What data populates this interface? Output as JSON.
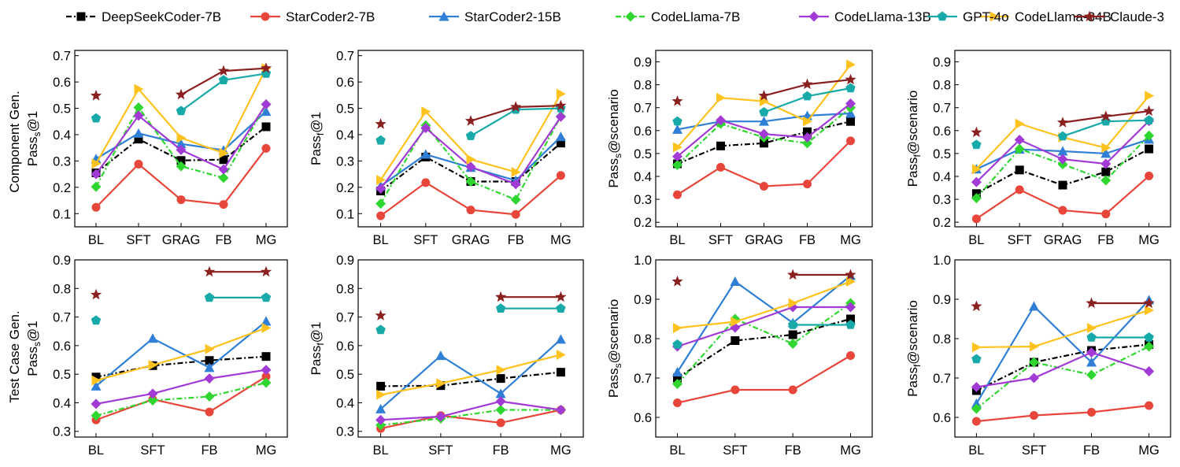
{
  "legend": [
    {
      "name": "DeepSeekCoder-7B",
      "color": "#000000",
      "marker": "square",
      "dash": "dashdot"
    },
    {
      "name": "StarCoder2-7B",
      "color": "#e8463a",
      "marker": "circle",
      "dash": "solid"
    },
    {
      "name": "StarCoder2-15B",
      "color": "#2f7fd6",
      "marker": "triangle",
      "dash": "solid"
    },
    {
      "name": "CodeLlama-7B",
      "color": "#2fd62f",
      "marker": "diamond",
      "dash": "dashdot"
    },
    {
      "name": "CodeLlama-13B",
      "color": "#a23ad6",
      "marker": "diamond",
      "dash": "solid"
    },
    {
      "name": "CodeLlama-34B",
      "color": "#ffc21f",
      "marker": "triangle-right",
      "dash": "solid"
    },
    {
      "name": "GPT-4o",
      "color": "#18a9a9",
      "marker": "pentagon",
      "dash": "solid"
    },
    {
      "name": "Claude-3",
      "color": "#8a2020",
      "marker": "star",
      "dash": "solid"
    }
  ],
  "row_labels": [
    "Component Gen.",
    "Test Case Gen."
  ],
  "chart_data": [
    {
      "type": "line",
      "row": 0,
      "col": 0,
      "ylabel_main": "Pass",
      "ylabel_sub": "s",
      "ylabel_suffix": "@1",
      "categories": [
        "BL",
        "SFT",
        "GRAG",
        "FB",
        "MG"
      ],
      "ylim": [
        0.05,
        0.72
      ],
      "yticks": [
        "0.1",
        "0.2",
        "0.3",
        "0.4",
        "0.5",
        "0.6",
        "0.7"
      ],
      "series": [
        {
          "name": "DeepSeekCoder-7B",
          "values": [
            0.255,
            0.383,
            0.302,
            0.305,
            0.43
          ]
        },
        {
          "name": "StarCoder2-7B",
          "values": [
            0.124,
            0.288,
            0.153,
            0.135,
            0.348
          ]
        },
        {
          "name": "StarCoder2-15B",
          "values": [
            0.308,
            0.405,
            0.365,
            0.341,
            0.488
          ]
        },
        {
          "name": "CodeLlama-7B",
          "values": [
            0.202,
            0.503,
            0.28,
            0.236,
            0.515
          ]
        },
        {
          "name": "CodeLlama-13B",
          "values": [
            0.25,
            0.472,
            0.342,
            0.268,
            0.515
          ]
        },
        {
          "name": "CodeLlama-34B",
          "values": [
            0.29,
            0.573,
            0.388,
            0.33,
            0.652
          ]
        },
        {
          "name": "GPT-4o",
          "values": [
            0.462,
            null,
            0.49,
            0.607,
            0.632
          ]
        },
        {
          "name": "Claude-3",
          "values": [
            0.548,
            null,
            0.552,
            0.642,
            0.652
          ]
        }
      ]
    },
    {
      "type": "line",
      "row": 0,
      "col": 1,
      "ylabel_main": "Pass",
      "ylabel_sub": "f",
      "ylabel_suffix": "@1",
      "categories": [
        "BL",
        "SFT",
        "GRAG",
        "FB",
        "MG"
      ],
      "ylim": [
        0.05,
        0.72
      ],
      "yticks": [
        "0.1",
        "0.2",
        "0.3",
        "0.4",
        "0.5",
        "0.6",
        "0.7"
      ],
      "series": [
        {
          "name": "DeepSeekCoder-7B",
          "values": [
            0.186,
            0.315,
            0.222,
            0.222,
            0.368
          ]
        },
        {
          "name": "StarCoder2-7B",
          "values": [
            0.092,
            0.218,
            0.114,
            0.097,
            0.245
          ]
        },
        {
          "name": "StarCoder2-15B",
          "values": [
            0.205,
            0.325,
            0.275,
            0.226,
            0.392
          ]
        },
        {
          "name": "CodeLlama-7B",
          "values": [
            0.138,
            0.435,
            0.222,
            0.153,
            0.47
          ]
        },
        {
          "name": "CodeLlama-13B",
          "values": [
            0.195,
            0.425,
            0.278,
            0.212,
            0.468
          ]
        },
        {
          "name": "CodeLlama-34B",
          "values": [
            0.228,
            0.488,
            0.306,
            0.258,
            0.555
          ]
        },
        {
          "name": "GPT-4o",
          "values": [
            0.378,
            null,
            0.395,
            0.495,
            0.5
          ]
        },
        {
          "name": "Claude-3",
          "values": [
            0.44,
            null,
            0.452,
            0.505,
            0.51
          ]
        }
      ]
    },
    {
      "type": "line",
      "row": 0,
      "col": 2,
      "ylabel_main": "Pass",
      "ylabel_sub": "s",
      "ylabel_suffix": "@scenario",
      "categories": [
        "BL",
        "SFT",
        "GRAG",
        "FB",
        "MG"
      ],
      "ylim": [
        0.18,
        0.95
      ],
      "yticks": [
        "0.2",
        "0.3",
        "0.4",
        "0.5",
        "0.6",
        "0.7",
        "0.8",
        "0.9"
      ],
      "series": [
        {
          "name": "DeepSeekCoder-7B",
          "values": [
            0.455,
            0.533,
            0.545,
            0.595,
            0.64
          ]
        },
        {
          "name": "StarCoder2-7B",
          "values": [
            0.32,
            0.44,
            0.357,
            0.367,
            0.555
          ]
        },
        {
          "name": "StarCoder2-15B",
          "values": [
            0.605,
            0.64,
            0.64,
            0.665,
            0.675
          ]
        },
        {
          "name": "CodeLlama-7B",
          "values": [
            0.45,
            0.63,
            0.57,
            0.545,
            0.7
          ]
        },
        {
          "name": "CodeLlama-13B",
          "values": [
            0.487,
            0.645,
            0.585,
            0.57,
            0.718
          ]
        },
        {
          "name": "CodeLlama-34B",
          "values": [
            0.527,
            0.743,
            0.728,
            0.64,
            0.888
          ]
        },
        {
          "name": "GPT-4o",
          "values": [
            0.64,
            null,
            0.68,
            0.75,
            0.785
          ]
        },
        {
          "name": "Claude-3",
          "values": [
            0.728,
            null,
            0.752,
            0.802,
            0.822
          ]
        }
      ]
    },
    {
      "type": "line",
      "row": 0,
      "col": 3,
      "ylabel_main": "Pass",
      "ylabel_sub": "f",
      "ylabel_suffix": "@scenario",
      "categories": [
        "BL",
        "SFT",
        "GRAG",
        "FB",
        "MG"
      ],
      "ylim": [
        0.18,
        0.95
      ],
      "yticks": [
        "0.2",
        "0.3",
        "0.4",
        "0.5",
        "0.6",
        "0.7",
        "0.8",
        "0.9"
      ],
      "series": [
        {
          "name": "DeepSeekCoder-7B",
          "values": [
            0.325,
            0.428,
            0.362,
            0.42,
            0.52
          ]
        },
        {
          "name": "StarCoder2-7B",
          "values": [
            0.215,
            0.342,
            0.252,
            0.236,
            0.402
          ]
        },
        {
          "name": "StarCoder2-15B",
          "values": [
            0.432,
            0.518,
            0.51,
            0.5,
            0.562
          ]
        },
        {
          "name": "CodeLlama-7B",
          "values": [
            0.305,
            0.52,
            0.453,
            0.383,
            0.578
          ]
        },
        {
          "name": "CodeLlama-13B",
          "values": [
            0.375,
            0.56,
            0.475,
            0.455,
            0.642
          ]
        },
        {
          "name": "CodeLlama-34B",
          "values": [
            0.432,
            0.63,
            0.57,
            0.525,
            0.752
          ]
        },
        {
          "name": "GPT-4o",
          "values": [
            0.538,
            null,
            0.575,
            0.64,
            0.645
          ]
        },
        {
          "name": "Claude-3",
          "values": [
            0.592,
            null,
            0.635,
            0.662,
            0.685
          ]
        }
      ]
    },
    {
      "type": "line",
      "row": 1,
      "col": 0,
      "ylabel_main": "Pass",
      "ylabel_sub": "s",
      "ylabel_suffix": "@1",
      "categories": [
        "BL",
        "SFT",
        "FB",
        "MG"
      ],
      "ylim": [
        0.28,
        0.9
      ],
      "yticks": [
        "0.3",
        "0.4",
        "0.5",
        "0.6",
        "0.7",
        "0.8",
        "0.9"
      ],
      "series": [
        {
          "name": "DeepSeekCoder-7B",
          "values": [
            0.49,
            0.53,
            0.548,
            0.562
          ]
        },
        {
          "name": "StarCoder2-7B",
          "values": [
            0.34,
            0.412,
            0.368,
            0.492
          ]
        },
        {
          "name": "StarCoder2-15B",
          "values": [
            0.458,
            0.625,
            0.523,
            0.685
          ]
        },
        {
          "name": "CodeLlama-7B",
          "values": [
            0.355,
            0.408,
            0.422,
            0.47
          ]
        },
        {
          "name": "CodeLlama-13B",
          "values": [
            0.396,
            0.432,
            0.485,
            0.515
          ]
        },
        {
          "name": "CodeLlama-34B",
          "values": [
            0.478,
            0.532,
            0.588,
            0.662
          ]
        },
        {
          "name": "GPT-4o",
          "values": [
            0.688,
            null,
            0.768,
            0.768
          ]
        },
        {
          "name": "Claude-3",
          "values": [
            0.778,
            null,
            0.858,
            0.858
          ]
        }
      ]
    },
    {
      "type": "line",
      "row": 1,
      "col": 1,
      "ylabel_main": "Pass",
      "ylabel_sub": "f",
      "ylabel_suffix": "@1",
      "categories": [
        "BL",
        "SFT",
        "FB",
        "MG"
      ],
      "ylim": [
        0.28,
        0.9
      ],
      "yticks": [
        "0.3",
        "0.4",
        "0.5",
        "0.6",
        "0.7",
        "0.8",
        "0.9"
      ],
      "series": [
        {
          "name": "DeepSeekCoder-7B",
          "values": [
            0.458,
            0.46,
            0.485,
            0.507
          ]
        },
        {
          "name": "StarCoder2-7B",
          "values": [
            0.31,
            0.355,
            0.33,
            0.375
          ]
        },
        {
          "name": "StarCoder2-15B",
          "values": [
            0.378,
            0.565,
            0.432,
            0.622
          ]
        },
        {
          "name": "CodeLlama-7B",
          "values": [
            0.322,
            0.345,
            0.375,
            0.375
          ]
        },
        {
          "name": "CodeLlama-13B",
          "values": [
            0.34,
            0.352,
            0.405,
            0.375
          ]
        },
        {
          "name": "CodeLlama-34B",
          "values": [
            0.428,
            0.468,
            0.515,
            0.568
          ]
        },
        {
          "name": "GPT-4o",
          "values": [
            0.655,
            null,
            0.73,
            0.73
          ]
        },
        {
          "name": "Claude-3",
          "values": [
            0.705,
            null,
            0.77,
            0.77
          ]
        }
      ]
    },
    {
      "type": "line",
      "row": 1,
      "col": 2,
      "ylabel_main": "Pass",
      "ylabel_sub": "s",
      "ylabel_suffix": "@scenario",
      "categories": [
        "BL",
        "SFT",
        "FB",
        "MG"
      ],
      "ylim": [
        0.55,
        1.0
      ],
      "yticks": [
        "0.6",
        "0.7",
        "0.8",
        "0.9",
        "1.0"
      ],
      "series": [
        {
          "name": "DeepSeekCoder-7B",
          "values": [
            0.7,
            0.795,
            0.81,
            0.85
          ]
        },
        {
          "name": "StarCoder2-7B",
          "values": [
            0.637,
            0.67,
            0.67,
            0.757
          ]
        },
        {
          "name": "StarCoder2-15B",
          "values": [
            0.715,
            0.945,
            0.84,
            0.96
          ]
        },
        {
          "name": "CodeLlama-7B",
          "values": [
            0.685,
            0.85,
            0.787,
            0.89
          ]
        },
        {
          "name": "CodeLlama-13B",
          "values": [
            0.78,
            0.828,
            0.88,
            0.88
          ]
        },
        {
          "name": "CodeLlama-34B",
          "values": [
            0.827,
            0.843,
            0.89,
            0.945
          ]
        },
        {
          "name": "GPT-4o",
          "values": [
            0.785,
            null,
            0.835,
            0.835
          ]
        },
        {
          "name": "Claude-3",
          "values": [
            0.945,
            null,
            0.962,
            0.962
          ]
        }
      ]
    },
    {
      "type": "line",
      "row": 1,
      "col": 3,
      "ylabel_main": "Pass",
      "ylabel_sub": "f",
      "ylabel_suffix": "@scenario",
      "categories": [
        "BL",
        "SFT",
        "FB",
        "MG"
      ],
      "ylim": [
        0.55,
        1.0
      ],
      "yticks": [
        "0.6",
        "0.7",
        "0.8",
        "0.9",
        "1.0"
      ],
      "series": [
        {
          "name": "DeepSeekCoder-7B",
          "values": [
            0.668,
            0.74,
            0.77,
            0.785
          ]
        },
        {
          "name": "StarCoder2-7B",
          "values": [
            0.59,
            0.605,
            0.613,
            0.63
          ]
        },
        {
          "name": "StarCoder2-15B",
          "values": [
            0.635,
            0.882,
            0.74,
            0.898
          ]
        },
        {
          "name": "CodeLlama-7B",
          "values": [
            0.622,
            0.74,
            0.708,
            0.78
          ]
        },
        {
          "name": "CodeLlama-13B",
          "values": [
            0.677,
            0.7,
            0.765,
            0.717
          ]
        },
        {
          "name": "CodeLlama-34B",
          "values": [
            0.778,
            0.78,
            0.827,
            0.872
          ]
        },
        {
          "name": "GPT-4o",
          "values": [
            0.748,
            null,
            0.803,
            0.803
          ]
        },
        {
          "name": "Claude-3",
          "values": [
            0.882,
            null,
            0.89,
            0.89
          ]
        }
      ]
    }
  ]
}
